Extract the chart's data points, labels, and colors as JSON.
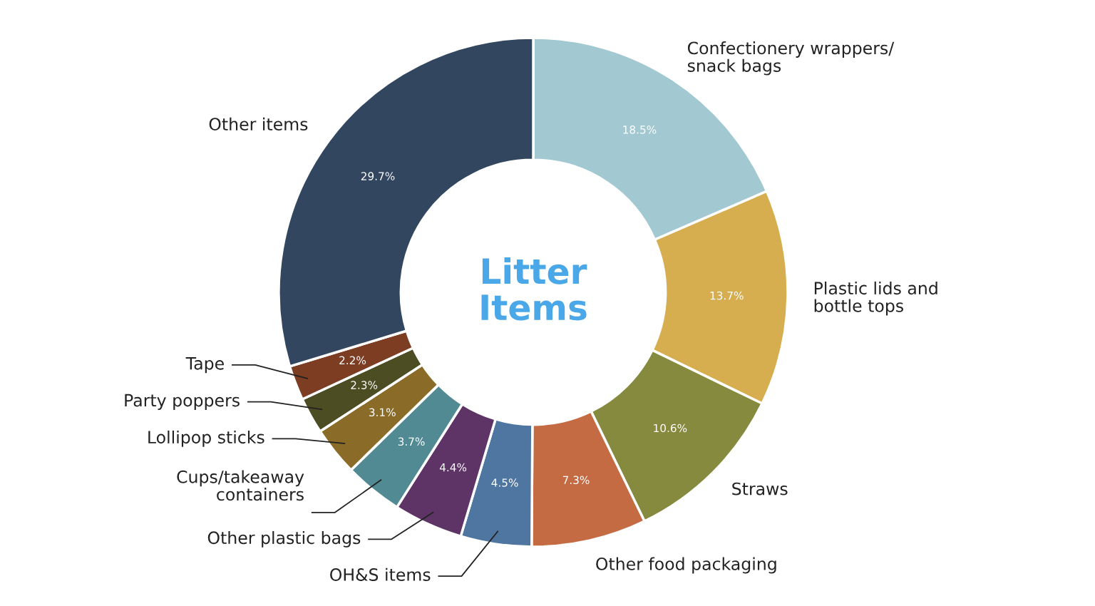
{
  "chart_data": {
    "type": "donut",
    "title": "Litter\nItems",
    "categories": [
      "Confectionery wrappers/\nsnack bags",
      "Plastic lids and\nbottle tops",
      "Straws",
      "Other food packaging",
      "OH&S items",
      "Other plastic bags",
      "Cups/takeaway\ncontainers",
      "Lollipop sticks",
      "Party poppers",
      "Tape",
      "Other items"
    ],
    "values": [
      18.5,
      13.7,
      10.6,
      7.3,
      4.5,
      4.4,
      3.7,
      3.1,
      2.3,
      2.2,
      29.7
    ],
    "colors": [
      "#a2c8d1",
      "#d6ae50",
      "#858a3e",
      "#c56b43",
      "#4f76a0",
      "#5e3467",
      "#528a93",
      "#8a6c28",
      "#4d4d24",
      "#7d3d22",
      "#32475f"
    ],
    "value_labels": [
      "18.5%",
      "13.7%",
      "10.6%",
      "7.3%",
      "4.5%",
      "4.4%",
      "3.7%",
      "3.1%",
      "2.3%",
      "2.2%",
      "29.7%"
    ]
  }
}
